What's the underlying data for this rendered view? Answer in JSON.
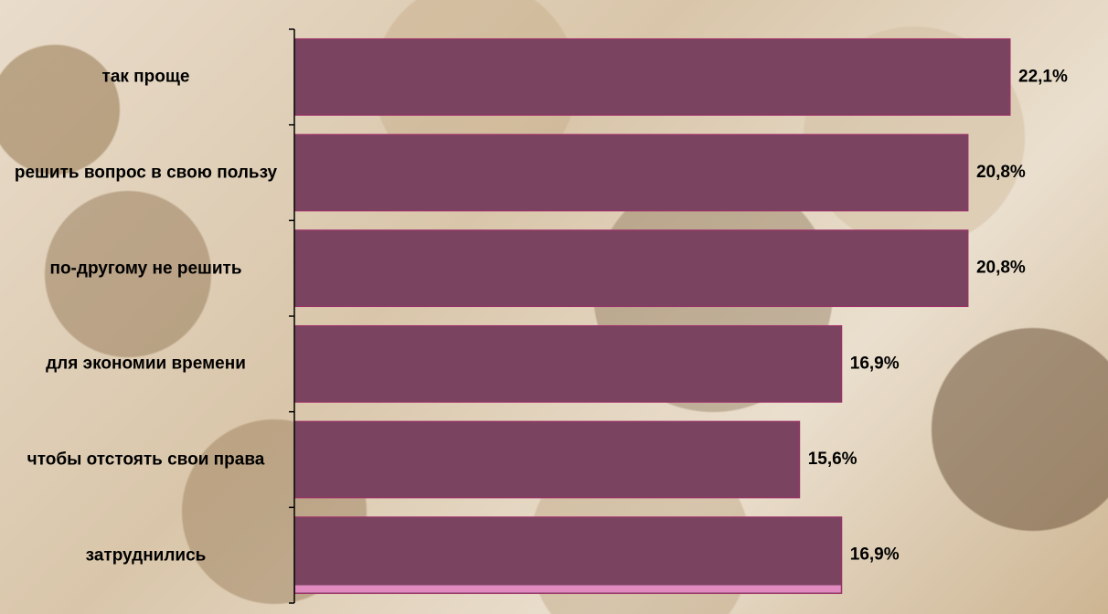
{
  "chart_data": {
    "type": "bar",
    "orientation": "horizontal",
    "categories": [
      "так проще",
      "решить вопрос в свою пользу",
      "по-другому не решить",
      "для экономии времени",
      "чтобы отстоять свои права",
      "затруднились"
    ],
    "values": [
      22.1,
      20.8,
      20.8,
      16.9,
      15.6,
      16.9
    ],
    "value_labels": [
      "22,1%",
      "20,8%",
      "20,8%",
      "16,9%",
      "15,6%",
      "16,9%"
    ],
    "color": "#7a4360"
  }
}
